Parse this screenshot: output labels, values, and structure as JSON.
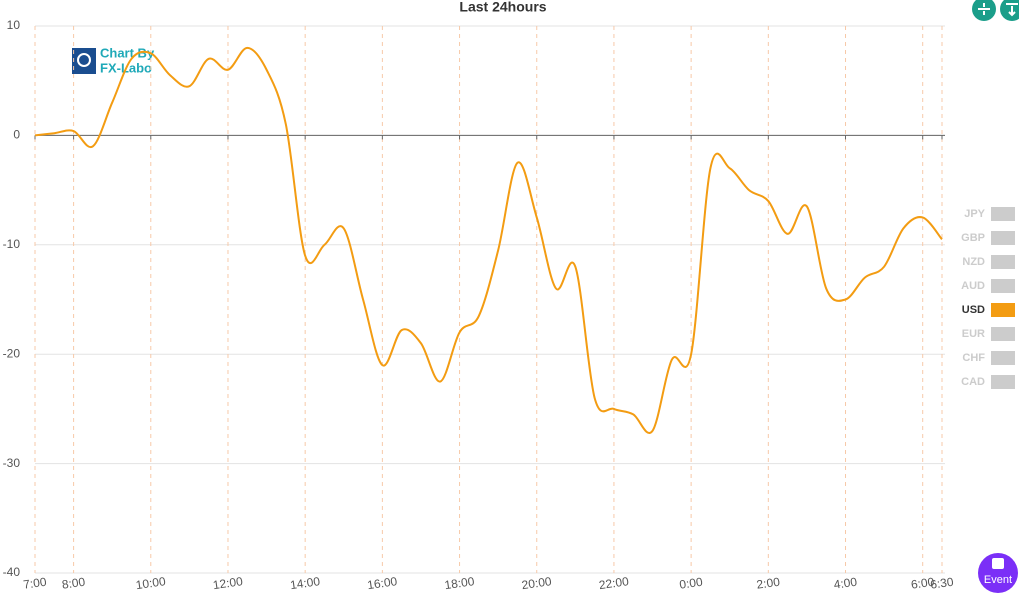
{
  "chart_data": {
    "type": "line",
    "title": "Last 24hours",
    "x": [
      "7:00",
      "7:30",
      "8:00",
      "8:30",
      "9:00",
      "9:30",
      "10:00",
      "10:30",
      "11:00",
      "11:30",
      "12:00",
      "12:30",
      "13:00",
      "13:30",
      "14:00",
      "14:30",
      "15:00",
      "15:30",
      "16:00",
      "16:30",
      "17:00",
      "17:30",
      "18:00",
      "18:30",
      "19:00",
      "19:30",
      "20:00",
      "20:30",
      "21:00",
      "21:30",
      "22:00",
      "22:30",
      "23:00",
      "23:30",
      "0:00",
      "0:30",
      "1:00",
      "1:30",
      "2:00",
      "2:30",
      "3:00",
      "3:30",
      "4:00",
      "4:30",
      "5:00",
      "5:30",
      "6:00",
      "6:30"
    ],
    "series": [
      {
        "name": "JPY",
        "visible": false
      },
      {
        "name": "GBP",
        "visible": false
      },
      {
        "name": "NZD",
        "visible": false
      },
      {
        "name": "AUD",
        "visible": false
      },
      {
        "name": "USD",
        "visible": true,
        "color": "#f39c12",
        "values": [
          0,
          0.2,
          0.4,
          -1,
          3,
          7,
          7.5,
          5.5,
          4.5,
          7,
          6,
          8,
          6,
          1,
          -11,
          -10,
          -8.5,
          -15,
          -21,
          -17.8,
          -19,
          -22.5,
          -18,
          -16.5,
          -10.5,
          -2.5,
          -7.5,
          -14,
          -12,
          -24,
          -25,
          -25.5,
          -27,
          -20.5,
          -20,
          -3,
          -3,
          -5,
          -6,
          -9,
          -6.5,
          -14,
          -15,
          -13,
          -12,
          -8.5,
          -7.5,
          -9.5
        ]
      },
      {
        "name": "EUR",
        "visible": false
      },
      {
        "name": "CHF",
        "visible": false
      },
      {
        "name": "CAD",
        "visible": false
      }
    ],
    "xlim": [
      "7:00",
      "6:30"
    ],
    "xticks": [
      "7:00",
      "8:00",
      "10:00",
      "12:00",
      "14:00",
      "16:00",
      "18:00",
      "20:00",
      "22:00",
      "0:00",
      "2:00",
      "4:00",
      "6:00",
      "6:30"
    ],
    "ylim": [
      -40,
      10
    ],
    "yticks": [
      -40,
      -30,
      -20,
      -10,
      0,
      10
    ],
    "grid": true,
    "legend_position": "right",
    "watermark": [
      "Chart By",
      "FX-Labo"
    ]
  },
  "buttons": {
    "event": "Event"
  }
}
